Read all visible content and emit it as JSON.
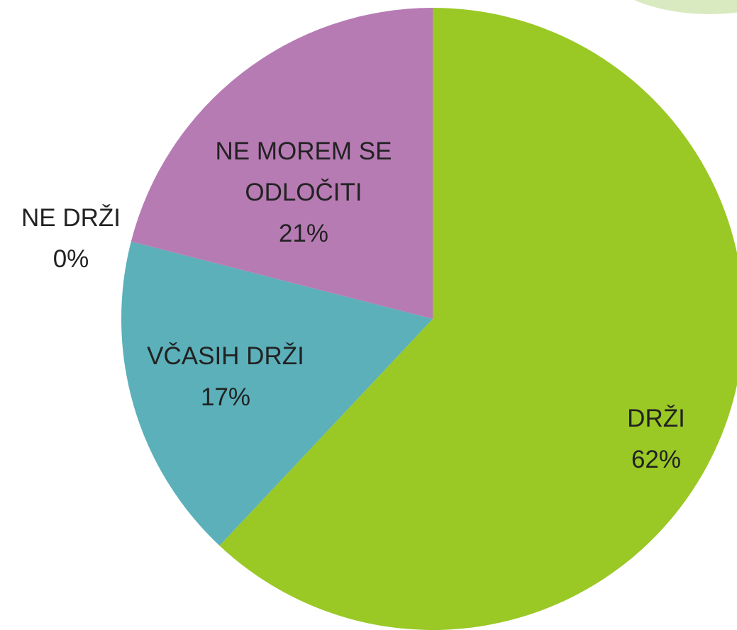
{
  "chart_data": {
    "type": "pie",
    "categories": [
      "DRŽI",
      "VČASIH DRŽI",
      "NE DRŽI",
      "NE MOREM SE ODLOČITI"
    ],
    "values": [
      62,
      17,
      0,
      21
    ],
    "value_labels": [
      "62%",
      "17%",
      "0%",
      "21%"
    ],
    "colors": [
      "#9ac825",
      "#5bb0ba",
      "#4f81bd",
      "#b77bb4"
    ]
  }
}
